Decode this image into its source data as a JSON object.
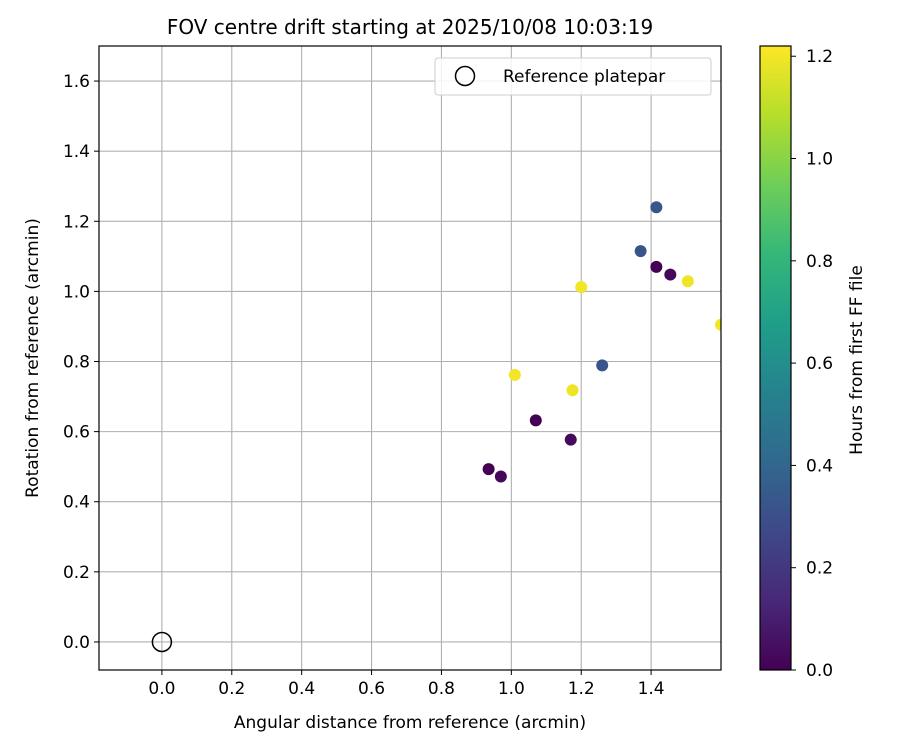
{
  "chart_data": {
    "type": "scatter",
    "title": "FOV centre drift starting at 2025/10/08 10:03:19",
    "xlabel": "Angular distance from reference (arcmin)",
    "ylabel": "Rotation from reference (arcmin)",
    "xlim": [
      -0.18,
      1.6
    ],
    "ylim": [
      -0.08,
      1.7
    ],
    "grid": true,
    "x_ticks": [
      0.0,
      0.2,
      0.4,
      0.6,
      0.8,
      1.0,
      1.2,
      1.4
    ],
    "x_tick_labels": [
      "0.0",
      "0.2",
      "0.4",
      "0.6",
      "0.8",
      "1.0",
      "1.2",
      "1.4"
    ],
    "y_ticks": [
      0.0,
      0.2,
      0.4,
      0.6,
      0.8,
      1.0,
      1.2,
      1.4,
      1.6
    ],
    "y_tick_labels": [
      "0.0",
      "0.2",
      "0.4",
      "0.6",
      "0.8",
      "1.0",
      "1.2",
      "1.4",
      "1.6"
    ],
    "reference": {
      "x": 0.0,
      "y": 0.0,
      "marker": "open-circle",
      "color": "#000000"
    },
    "legend": {
      "location": "top-right",
      "entries": [
        "Reference platepar"
      ]
    },
    "colorbar": {
      "label": "Hours from first FF file",
      "range": [
        0.0,
        1.22
      ],
      "ticks": [
        0.0,
        0.2,
        0.4,
        0.6,
        0.8,
        1.0,
        1.2
      ],
      "tick_labels": [
        "0.0",
        "0.2",
        "0.4",
        "0.6",
        "0.8",
        "1.0",
        "1.2"
      ],
      "colormap": "viridis",
      "colormap_stops": [
        "#440154",
        "#482878",
        "#3e4989",
        "#31688e",
        "#26828e",
        "#1f9e89",
        "#35b779",
        "#6ece58",
        "#b5de2b",
        "#fde725"
      ]
    },
    "points": [
      {
        "x": 0.935,
        "y": 0.493,
        "hours": 0.0
      },
      {
        "x": 0.97,
        "y": 0.472,
        "hours": 0.02
      },
      {
        "x": 1.07,
        "y": 0.632,
        "hours": 0.0
      },
      {
        "x": 1.17,
        "y": 0.577,
        "hours": 0.03
      },
      {
        "x": 1.415,
        "y": 1.07,
        "hours": 0.0
      },
      {
        "x": 1.455,
        "y": 1.048,
        "hours": 0.02
      },
      {
        "x": 1.37,
        "y": 1.115,
        "hours": 0.32
      },
      {
        "x": 1.415,
        "y": 1.24,
        "hours": 0.33
      },
      {
        "x": 1.26,
        "y": 0.789,
        "hours": 0.32
      },
      {
        "x": 1.01,
        "y": 0.762,
        "hours": 1.2
      },
      {
        "x": 1.175,
        "y": 0.718,
        "hours": 1.19
      },
      {
        "x": 1.2,
        "y": 1.012,
        "hours": 1.2
      },
      {
        "x": 1.505,
        "y": 1.029,
        "hours": 1.19
      },
      {
        "x": 1.6,
        "y": 0.905,
        "hours": 1.2
      }
    ]
  }
}
